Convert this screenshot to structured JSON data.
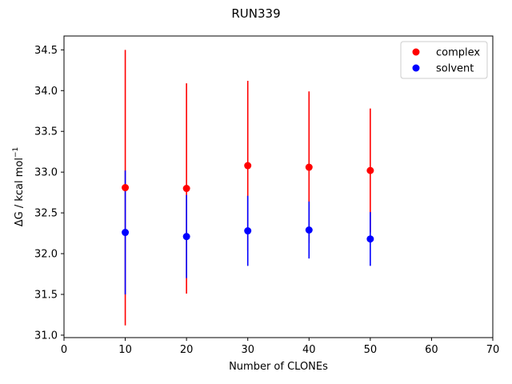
{
  "chart_data": {
    "type": "scatter",
    "title": "RUN339",
    "xlabel": "Number of CLONEs",
    "ylabel": "ΔG / kcal mol",
    "ylabel_sup": "−1",
    "xlim": [
      0,
      70
    ],
    "ylim": [
      30.97,
      34.67
    ],
    "xticks": [
      0,
      10,
      20,
      30,
      40,
      50,
      60,
      70
    ],
    "yticks": [
      31.0,
      31.5,
      32.0,
      32.5,
      33.0,
      33.5,
      34.0,
      34.5
    ],
    "grid": false,
    "legend_position": "top-right",
    "series": [
      {
        "name": "complex",
        "color": "#ff0000",
        "x": [
          10,
          20,
          30,
          40,
          50
        ],
        "y": [
          32.81,
          32.8,
          33.08,
          33.06,
          33.02
        ],
        "error": [
          1.69,
          1.29,
          1.04,
          0.93,
          0.76
        ]
      },
      {
        "name": "solvent",
        "color": "#0000ff",
        "x": [
          10,
          20,
          30,
          40,
          50
        ],
        "y": [
          32.26,
          32.21,
          32.28,
          32.29,
          32.18
        ],
        "error": [
          0.76,
          0.51,
          0.43,
          0.35,
          0.33
        ]
      }
    ]
  }
}
